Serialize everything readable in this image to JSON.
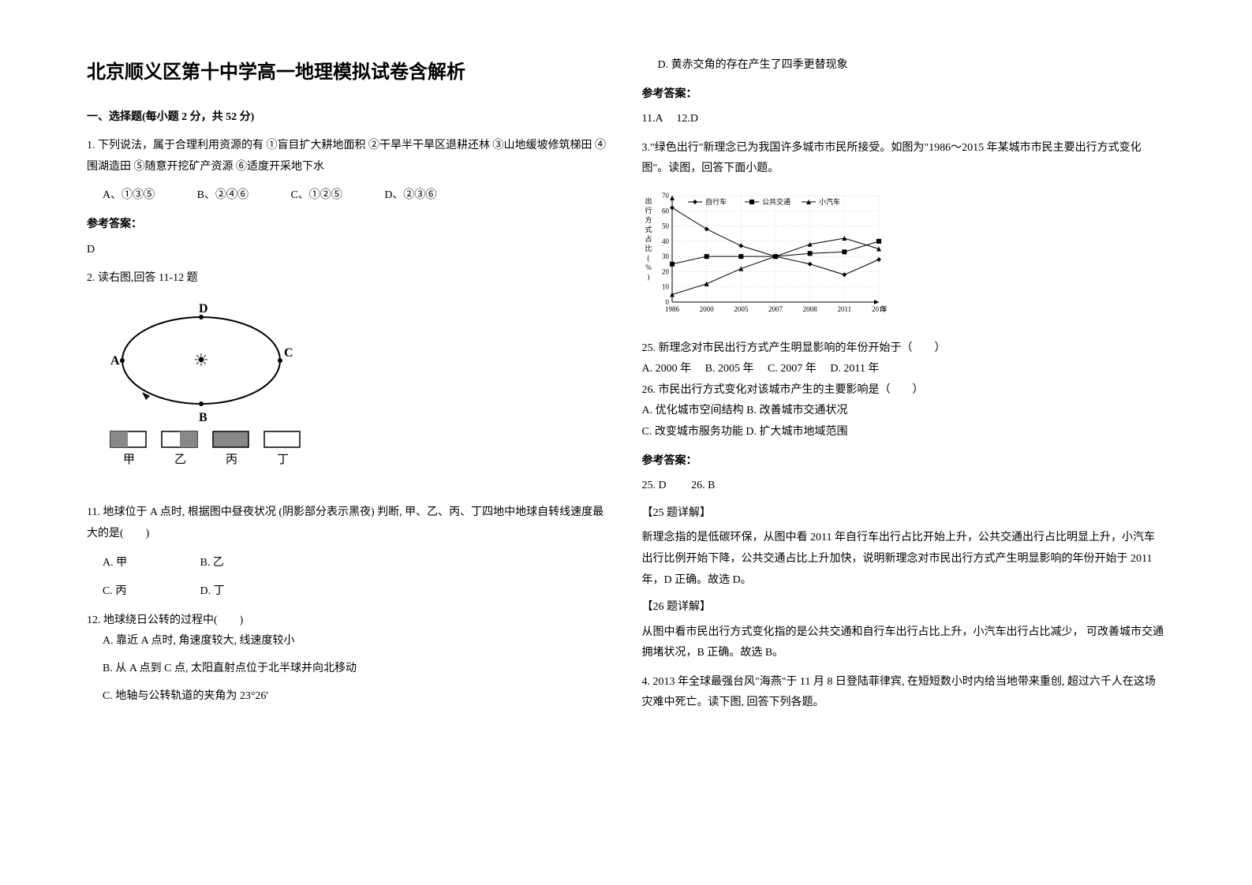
{
  "title": "北京顺义区第十中学高一地理模拟试卷含解析",
  "section1": {
    "header": "一、选择题(每小题 2 分，共 52 分)"
  },
  "q1": {
    "text": "1. 下列说法，属于合理利用资源的有  ①盲目扩大耕地面积  ②干旱半干旱区退耕还林  ③山地缓坡修筑梯田  ④围湖造田  ⑤随意开挖矿产资源  ⑥适度开采地下水",
    "optA": "A、①③⑤",
    "optB": "B、②④⑥",
    "optC": "C、①②⑤",
    "optD": "D、②③⑥",
    "answerHeader": "参考答案：",
    "answer": "D"
  },
  "q2": {
    "text": "2. 读右图,回答 11-12 题",
    "diagram": {
      "labels": [
        "D",
        "C",
        "A",
        "B"
      ],
      "bottomLabels": [
        "甲",
        "乙",
        "丙",
        "丁"
      ],
      "boxPatterns": [
        "half",
        "half",
        "full",
        "empty"
      ]
    },
    "q11": {
      "text": "11. 地球位于 A 点时, 根据图中昼夜状况 (阴影部分表示黑夜) 判断, 甲、乙、丙、丁四地中地球自转线速度最大的是(　　)",
      "optA": "A. 甲",
      "optB": "B. 乙",
      "optC": "C. 丙",
      "optD": "D. 丁"
    },
    "q12": {
      "text": "12. 地球绕日公转的过程中(　　)",
      "optA": "A. 靠近 A 点时, 角速度较大, 线速度较小",
      "optB": "B. 从 A 点到 C 点, 太阳直射点位于北半球并向北移动",
      "optC": "C. 地轴与公转轨道的夹角为 23°26′",
      "optD": "D. 黄赤交角的存在产生了四季更替现象"
    },
    "answerHeader": "参考答案：",
    "answer": "11.A　 12.D"
  },
  "q3": {
    "intro": "3.\"绿色出行\"新理念已为我国许多城市市民所接受。如图为\"1986～2015 年某城市市民主要出行方式变化图\"。读图，回答下面小题。",
    "chart": {
      "type": "line",
      "title": "",
      "yLabel": "出行方式占比(%)",
      "xLabel": "年",
      "xCategories": [
        "1986",
        "2000",
        "2005",
        "2007",
        "2008",
        "2011",
        "2015"
      ],
      "ylim": [
        0,
        70
      ],
      "ytick_step": 10,
      "series": [
        {
          "name": "自行车",
          "marker": "diamond",
          "values": [
            62,
            48,
            37,
            30,
            25,
            18,
            28
          ],
          "color": "#000000"
        },
        {
          "name": "公共交通",
          "marker": "square",
          "values": [
            25,
            30,
            30,
            30,
            32,
            33,
            40
          ],
          "color": "#000000"
        },
        {
          "name": "小汽车",
          "marker": "triangle",
          "values": [
            5,
            12,
            22,
            30,
            38,
            42,
            35
          ],
          "color": "#000000"
        }
      ],
      "background_color": "#ffffff",
      "grid_color": "#cccccc",
      "grid_dash": "2,2",
      "line_width": 1,
      "font_size": 9
    },
    "q25": {
      "text": "25.  新理念对市民出行方式产生明显影响的年份开始于（　　）",
      "optA": "A. 2000 年",
      "optB": "B. 2005 年",
      "optC": "C. 2007 年",
      "optD": "D. 2011 年"
    },
    "q26": {
      "text": "26.  市民出行方式变化对该城市产生的主要影响是（　　）",
      "optA": "A. 优化城市空间结构",
      "optB": "B. 改善城市交通状况",
      "optC": "C. 改变城市服务功能",
      "optD": "D. 扩大城市地域范围"
    },
    "answerHeader": "参考答案：",
    "answer": "25. D　　  26. B",
    "explain25Header": "【25 题详解】",
    "explain25": "新理念指的是低碳环保，从图中看 2011 年自行车出行占比开始上升，公共交通出行占比明显上升，小汽车出行比例开始下降，公共交通占比上升加快，说明新理念对市民出行方式产生明显影响的年份开始于 2011 年，D 正确。故选 D。",
    "explain26Header": "【26 题详解】",
    "explain26": "从图中看市民出行方式变化指的是公共交通和自行车出行占比上升，小汽车出行占比减少， 可改善城市交通拥堵状况，B 正确。故选 B。"
  },
  "q4": {
    "text": "4. 2013 年全球最强台风\"海燕\"于 11 月 8 日登陆菲律宾, 在短短数小时内给当地带来重创, 超过六千人在这场灾难中死亡。读下图, 回答下列各题。"
  }
}
